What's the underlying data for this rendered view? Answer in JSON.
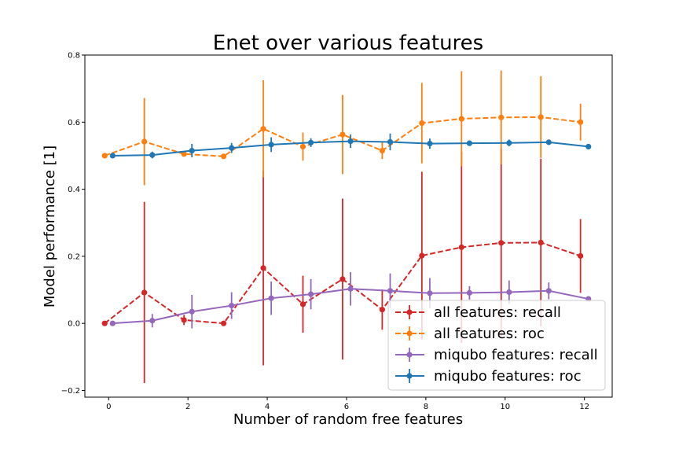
{
  "chart_data": {
    "type": "line",
    "title": "Enet over various features",
    "xlabel": "Number of random free features",
    "ylabel": "Model performance [1]",
    "xlim": [
      -0.6,
      12.7
    ],
    "ylim": [
      -0.22,
      0.8
    ],
    "xticks": [
      0,
      2,
      4,
      6,
      8,
      10,
      12
    ],
    "yticks": [
      -0.2,
      0.0,
      0.2,
      0.4,
      0.6,
      0.8
    ],
    "ytick_labels": [
      "−0.2",
      "0.0",
      "0.2",
      "0.4",
      "0.6",
      "0.8"
    ],
    "xtick_labels": [
      "0",
      "2",
      "4",
      "6",
      "8",
      "10",
      "12"
    ],
    "grid": false,
    "legend_position": "lower-right",
    "series": [
      {
        "name": "all features: recall",
        "color": "#d62728",
        "style": "dashed",
        "x": [
          -0.1,
          0.9,
          1.9,
          2.9,
          3.9,
          4.9,
          5.9,
          6.9,
          7.9,
          8.9,
          9.9,
          10.9,
          11.9
        ],
        "y": [
          0.0,
          0.092,
          0.01,
          0.0,
          0.165,
          0.057,
          0.132,
          0.041,
          0.202,
          0.227,
          0.24,
          0.241,
          0.201
        ],
        "err": [
          0.0,
          0.27,
          0.015,
          0.0,
          0.29,
          0.085,
          0.24,
          0.06,
          0.25,
          0.285,
          0.28,
          0.25,
          0.11
        ]
      },
      {
        "name": "all features: roc",
        "color": "#ff7f0e",
        "style": "dashed",
        "x": [
          -0.1,
          0.9,
          1.9,
          2.9,
          3.9,
          4.9,
          5.9,
          6.9,
          7.9,
          8.9,
          9.9,
          10.9,
          11.9
        ],
        "y": [
          0.5,
          0.542,
          0.505,
          0.498,
          0.58,
          0.527,
          0.563,
          0.515,
          0.597,
          0.61,
          0.614,
          0.615,
          0.6
        ],
        "err": [
          0.0,
          0.13,
          0.005,
          0.0,
          0.145,
          0.042,
          0.118,
          0.025,
          0.12,
          0.142,
          0.14,
          0.122,
          0.055
        ]
      },
      {
        "name": "miqubo features: recall",
        "color": "#9467bd",
        "style": "solid",
        "x": [
          0.1,
          1.1,
          2.1,
          3.1,
          4.1,
          5.1,
          6.1,
          7.1,
          8.1,
          9.1,
          10.1,
          11.1,
          12.1
        ],
        "y": [
          0.0,
          0.008,
          0.035,
          0.053,
          0.075,
          0.087,
          0.103,
          0.097,
          0.09,
          0.091,
          0.093,
          0.097,
          0.073
        ],
        "err": [
          0.0,
          0.02,
          0.05,
          0.04,
          0.05,
          0.045,
          0.05,
          0.052,
          0.045,
          0.02,
          0.035,
          0.025,
          0.0
        ]
      },
      {
        "name": "miqubo features: roc",
        "color": "#1f77b4",
        "style": "solid",
        "x": [
          0.1,
          1.1,
          2.1,
          3.1,
          4.1,
          5.1,
          6.1,
          7.1,
          8.1,
          9.1,
          10.1,
          11.1,
          12.1
        ],
        "y": [
          0.5,
          0.502,
          0.515,
          0.523,
          0.533,
          0.539,
          0.543,
          0.541,
          0.536,
          0.537,
          0.538,
          0.54,
          0.527
        ],
        "err": [
          0.0,
          0.01,
          0.02,
          0.015,
          0.022,
          0.013,
          0.02,
          0.025,
          0.015,
          0.0,
          0.01,
          0.0,
          0.0
        ]
      }
    ]
  }
}
